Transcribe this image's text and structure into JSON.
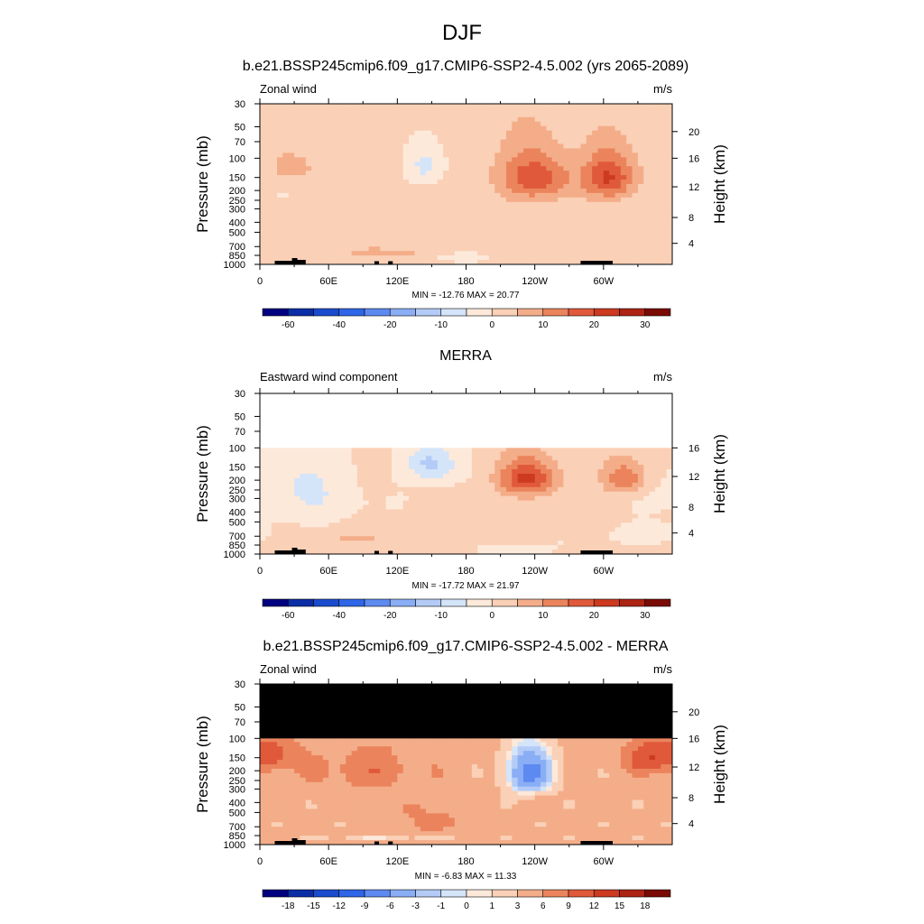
{
  "figure_title": "DJF",
  "chart_data": [
    {
      "type": "heatmap",
      "title": "b.e21.BSSP245cmip6.f09_g17.CMIP6-SSP2-4.5.002 (yrs 2065-2089)",
      "left_string": "Zonal wind",
      "right_string": "m/s",
      "xlabel": "",
      "ylabel": "Pressure (mb)",
      "right_axis_label": "Height (km)",
      "x_ticks": [
        "0",
        "60E",
        "120E",
        "180",
        "120W",
        "60W"
      ],
      "y_ticks": [
        "30",
        "50",
        "70",
        "100",
        "150",
        "200",
        "250",
        "300",
        "400",
        "500",
        "700",
        "850",
        "1000"
      ],
      "right_ticks": [
        "20",
        "16",
        "12",
        "8",
        "4"
      ],
      "min_max_text": "MIN = -12.76  MAX =  20.77",
      "stats": {
        "min": -12.76,
        "max": 20.77
      },
      "colorbar_labels": [
        "-60",
        "-40",
        "-20",
        "-10",
        "0",
        "10",
        "20",
        "30"
      ],
      "colorbar_levels": [
        -70,
        -60,
        -50,
        -40,
        -30,
        -20,
        -15,
        -10,
        -5,
        0,
        5,
        10,
        15,
        20,
        25,
        30,
        35
      ]
    },
    {
      "type": "heatmap",
      "title": "MERRA",
      "left_string": "Eastward wind component",
      "right_string": "m/s",
      "xlabel": "",
      "ylabel": "Pressure (mb)",
      "right_axis_label": "Height (km)",
      "x_ticks": [
        "0",
        "60E",
        "120E",
        "180",
        "120W",
        "60W"
      ],
      "y_ticks": [
        "30",
        "50",
        "70",
        "100",
        "150",
        "200",
        "250",
        "300",
        "400",
        "500",
        "700",
        "850",
        "1000"
      ],
      "right_ticks": [
        "16",
        "12",
        "8",
        "4"
      ],
      "min_max_text": "MIN = -17.72  MAX =  21.97",
      "stats": {
        "min": -17.72,
        "max": 21.97
      },
      "colorbar_labels": [
        "-60",
        "-40",
        "-20",
        "-10",
        "0",
        "10",
        "20",
        "30"
      ],
      "colorbar_levels": [
        -70,
        -60,
        -50,
        -40,
        -30,
        -20,
        -15,
        -10,
        -5,
        0,
        5,
        10,
        15,
        20,
        25,
        30,
        35
      ]
    },
    {
      "type": "heatmap",
      "title": "b.e21.BSSP245cmip6.f09_g17.CMIP6-SSP2-4.5.002 - MERRA",
      "left_string": "Zonal wind",
      "right_string": "m/s",
      "xlabel": "",
      "ylabel": "Pressure (mb)",
      "right_axis_label": "Height (km)",
      "x_ticks": [
        "0",
        "60E",
        "120E",
        "180",
        "120W",
        "60W"
      ],
      "y_ticks": [
        "30",
        "50",
        "70",
        "100",
        "150",
        "200",
        "250",
        "300",
        "400",
        "500",
        "700",
        "850",
        "1000"
      ],
      "right_ticks": [
        "20",
        "16",
        "12",
        "8",
        "4"
      ],
      "min_max_text": "MIN = -6.83  MAX = 11.33",
      "stats": {
        "min": -6.83,
        "max": 11.33
      },
      "colorbar_labels": [
        "-18",
        "-15",
        "-12",
        "-9",
        "-6",
        "-3",
        "-1",
        "0",
        "1",
        "3",
        "6",
        "9",
        "12",
        "15",
        "18"
      ],
      "colorbar_levels": [
        -21,
        -18,
        -15,
        -12,
        -9,
        -6,
        -3,
        -1,
        0,
        1,
        3,
        6,
        9,
        12,
        15,
        18,
        21
      ]
    }
  ],
  "colors": {
    "colormap": [
      "#000080",
      "#0b2da6",
      "#1a4ccd",
      "#2f66e8",
      "#5d8af0",
      "#8aaef5",
      "#b3cbf6",
      "#d4e4f9",
      "#fde9da",
      "#fad0b6",
      "#f4ad89",
      "#eb845c",
      "#e0593a",
      "#cc3a20",
      "#ad2314",
      "#7a0a04"
    ],
    "missing": "#000000",
    "topography": "#000000"
  }
}
